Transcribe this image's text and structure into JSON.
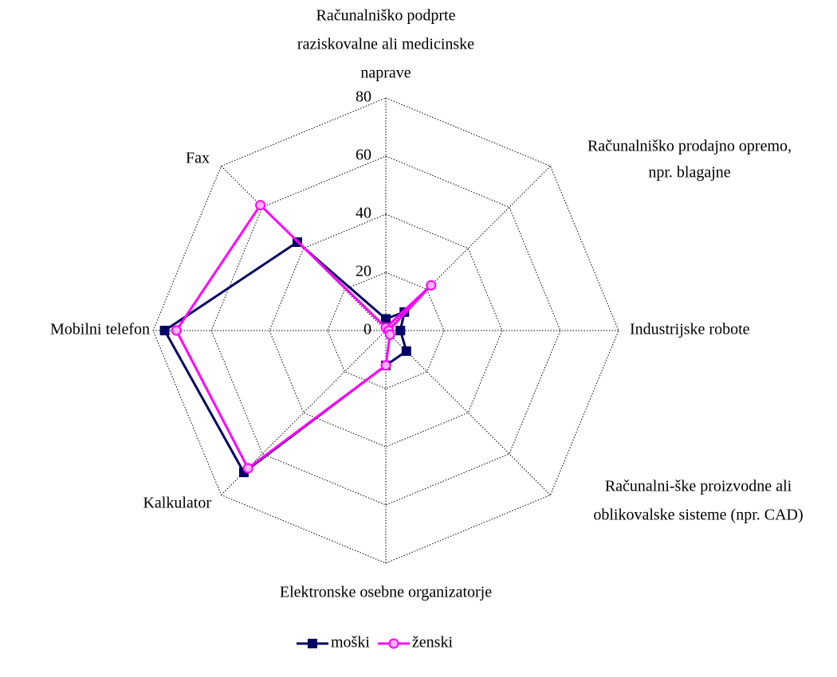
{
  "chart_data": {
    "type": "radar",
    "categories": [
      [
        "Računalniško podprte",
        "raziskovalne ali medicinske",
        "naprave"
      ],
      [
        "Računalniško prodajno opremo,",
        "npr. blagajne"
      ],
      [
        "Industrijske robote"
      ],
      [
        "Računalni-ške proizvodne ali",
        "oblikovalske sisteme (npr. CAD)"
      ],
      [
        "Elektronske osebne organizatorje"
      ],
      [
        "Kalkulator"
      ],
      [
        "Mobilni telefon"
      ],
      [
        "Fax"
      ]
    ],
    "series": [
      {
        "name": "moški",
        "color": "#000066",
        "marker": "square",
        "values": [
          4,
          9,
          5,
          10,
          12,
          69,
          76,
          43
        ]
      },
      {
        "name": "ženski",
        "color": "#ff00ff",
        "marker": "circle",
        "values": [
          1,
          22,
          1,
          2,
          12,
          67,
          72,
          61
        ]
      }
    ],
    "ylim": [
      0,
      80
    ],
    "yticks": [
      0,
      20,
      40,
      60,
      80
    ],
    "grid": true,
    "legend": "bottom"
  }
}
